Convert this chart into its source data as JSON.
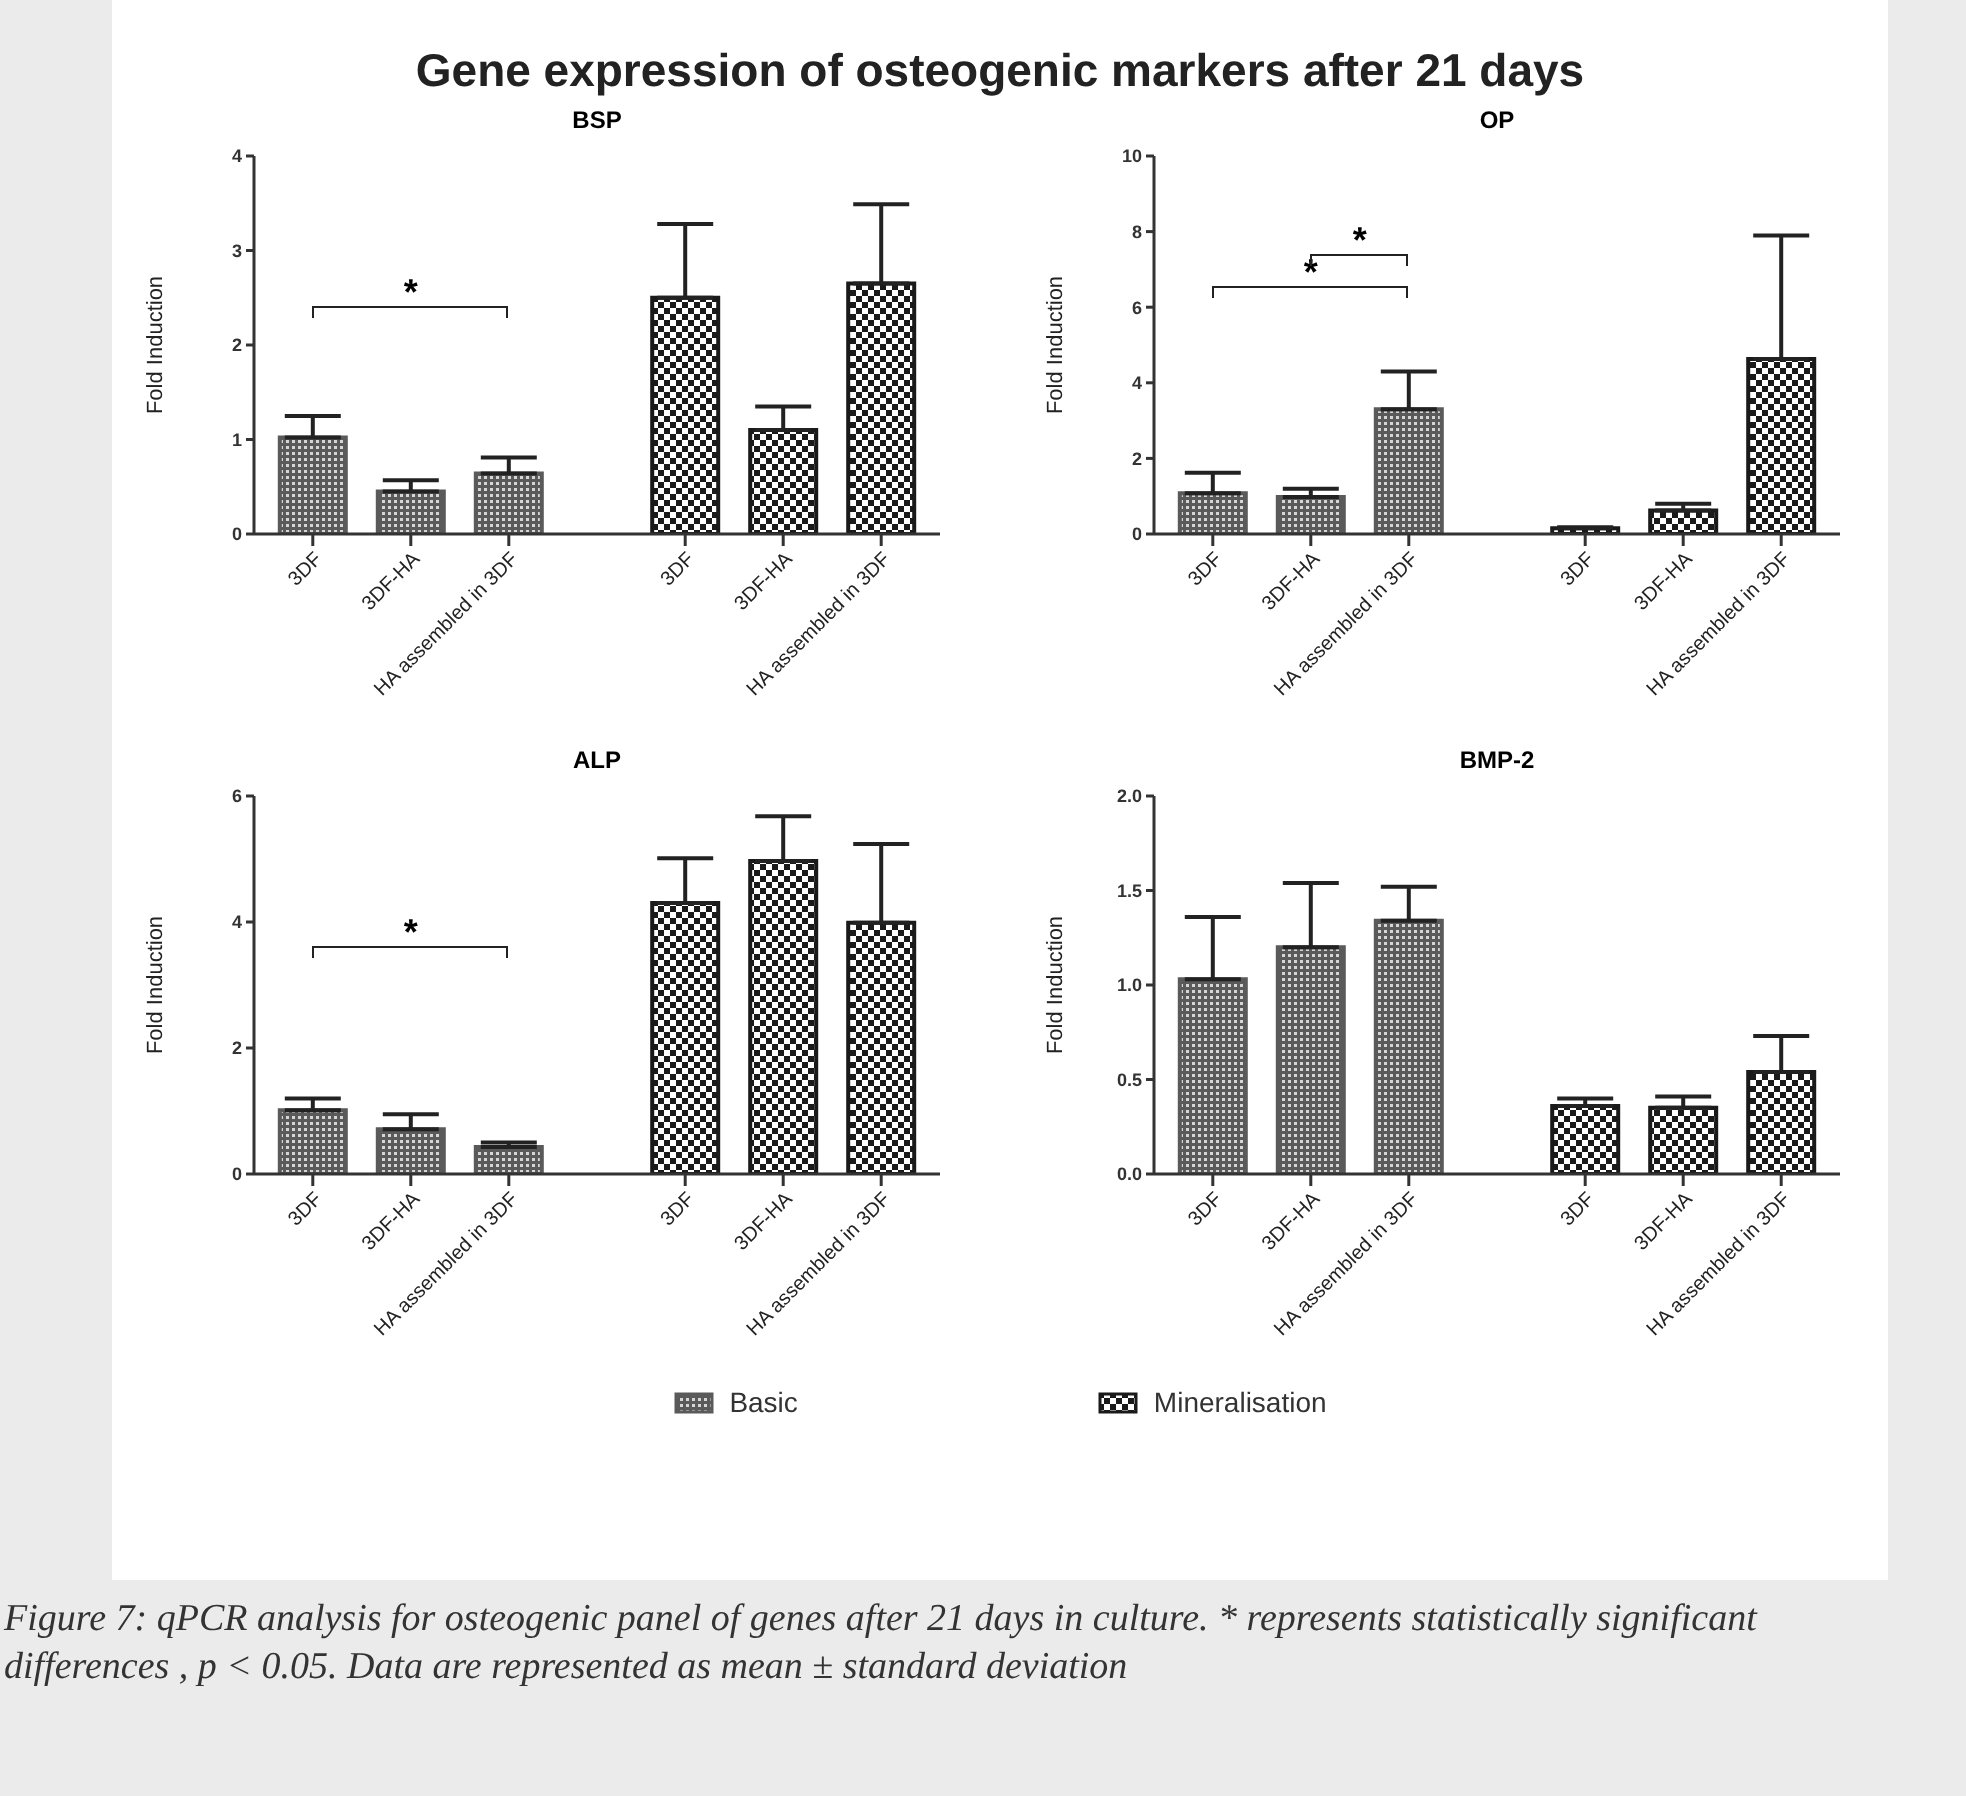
{
  "chart_data": [
    {
      "type": "other",
      "title": "Gene expression of osteogenic markers after 21 days"
    },
    {
      "type": "bar",
      "title": "BSP",
      "ylabel": "Fold Induction",
      "categories": [
        "3DF",
        "3DF-HA",
        "HA assembled in 3DF",
        "3DF",
        "3DF-HA",
        "HA assembled in 3DF"
      ],
      "ylim": [
        0,
        4
      ],
      "yticks": [
        0,
        1,
        2,
        3,
        4
      ],
      "legend": "bottom",
      "annotations": [
        "*"
      ],
      "series": [
        {
          "name": "Basic",
          "color": "#5a5a5a",
          "values": [
            1.02,
            0.45,
            0.64,
            null,
            null,
            null
          ],
          "errors": [
            [
              1.02,
              1.25
            ],
            [
              0.45,
              0.57
            ],
            [
              0.64,
              0.81
            ],
            null,
            null,
            null
          ]
        },
        {
          "name": "Mineralisation",
          "color": "#1a1a1a",
          "values": [
            null,
            null,
            null,
            2.5,
            1.1,
            2.65
          ],
          "errors": [
            null,
            null,
            null,
            [
              2.5,
              3.28
            ],
            [
              1.1,
              1.35
            ],
            [
              2.65,
              3.49
            ]
          ]
        }
      ]
    },
    {
      "type": "bar",
      "title": "OP",
      "ylabel": "Fold Induction",
      "categories": [
        "3DF",
        "3DF-HA",
        "HA assembled in 3DF",
        "3DF",
        "3DF-HA",
        "HA assembled in 3DF"
      ],
      "ylim": [
        0,
        10
      ],
      "yticks": [
        0,
        2,
        4,
        6,
        8,
        10
      ],
      "annotations": [
        "*",
        "*"
      ],
      "series": [
        {
          "color": "#5a5a5a",
          "values": [
            1.08,
            0.98,
            3.3,
            null,
            null,
            null
          ],
          "errors": [
            [
              1.08,
              1.62
            ],
            [
              0.98,
              1.2
            ],
            [
              3.3,
              4.3
            ],
            null,
            null,
            null
          ]
        },
        {
          "color": "#1a1a1a",
          "values": [
            null,
            null,
            null,
            0.15,
            0.62,
            4.63
          ],
          "errors": [
            null,
            null,
            null,
            [
              0.15,
              0.18
            ],
            [
              0.62,
              0.8
            ],
            [
              4.63,
              7.9
            ]
          ]
        }
      ]
    },
    {
      "type": "bar",
      "title": "ALP",
      "ylabel": "Fold Induction",
      "categories": [
        "3DF",
        "3DF-HA",
        "HA assembled in 3DF",
        "3DF",
        "3DF-HA",
        "HA assembled in 3DF"
      ],
      "ylim": [
        0,
        6
      ],
      "yticks": [
        0,
        2,
        4,
        6
      ],
      "annotations": [
        "*"
      ],
      "series": [
        {
          "color": "#5a5a5a",
          "values": [
            1.01,
            0.71,
            0.43,
            null,
            null,
            null
          ],
          "errors": [
            [
              1.01,
              1.2
            ],
            [
              0.71,
              0.95
            ],
            [
              0.43,
              0.5
            ],
            null,
            null,
            null
          ]
        },
        {
          "color": "#1a1a1a",
          "values": [
            null,
            null,
            null,
            4.3,
            4.97,
            3.99
          ],
          "errors": [
            null,
            null,
            null,
            [
              4.3,
              5.01
            ],
            [
              4.97,
              5.68
            ],
            [
              3.99,
              5.24
            ]
          ]
        }
      ]
    },
    {
      "type": "bar",
      "title": "BMP-2",
      "ylabel": "Fold Induction",
      "categories": [
        "3DF",
        "3DF-HA",
        "HA assembled in 3DF",
        "3DF",
        "3DF-HA",
        "HA assembled in 3DF"
      ],
      "ylim": [
        0,
        2
      ],
      "yticks": [
        {
          "value": 0,
          "label": "0.0"
        },
        {
          "value": 0.5,
          "label": "0.5"
        },
        {
          "value": 1,
          "label": "1.0"
        },
        {
          "value": 1.5,
          "label": "1.5"
        },
        {
          "value": 2,
          "label": "2.0"
        }
      ],
      "series": [
        {
          "color": "#5a5a5a",
          "values": [
            1.03,
            1.2,
            1.34,
            null,
            null,
            null
          ],
          "errors": [
            [
              1.03,
              1.36
            ],
            [
              1.2,
              1.54
            ],
            [
              1.34,
              1.52
            ],
            null,
            null,
            null
          ]
        },
        {
          "color": "#1a1a1a",
          "values": [
            null,
            null,
            null,
            0.36,
            0.35,
            0.54
          ],
          "errors": [
            null,
            null,
            null,
            [
              0.36,
              0.4
            ],
            [
              0.35,
              0.41
            ],
            [
              0.54,
              0.73
            ]
          ]
        }
      ]
    },
    {
      "type": "other",
      "annotations": [
        "Figure 7: qPCR analysis for osteogenic panel of genes after 21 days in culture. * represents statistically significant differences , p < 0.05. Data are represented as mean ± standard deviation"
      ]
    }
  ]
}
